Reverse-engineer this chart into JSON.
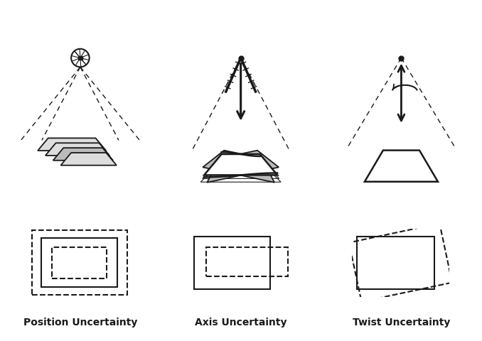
{
  "labels": [
    "Position Uncertainty",
    "Axis Uncertainty",
    "Twist Uncertainty"
  ],
  "bg_color": "#ffffff",
  "lc": "#1a1a1a",
  "gray": "#bbbbbb",
  "light": "#dddddd"
}
